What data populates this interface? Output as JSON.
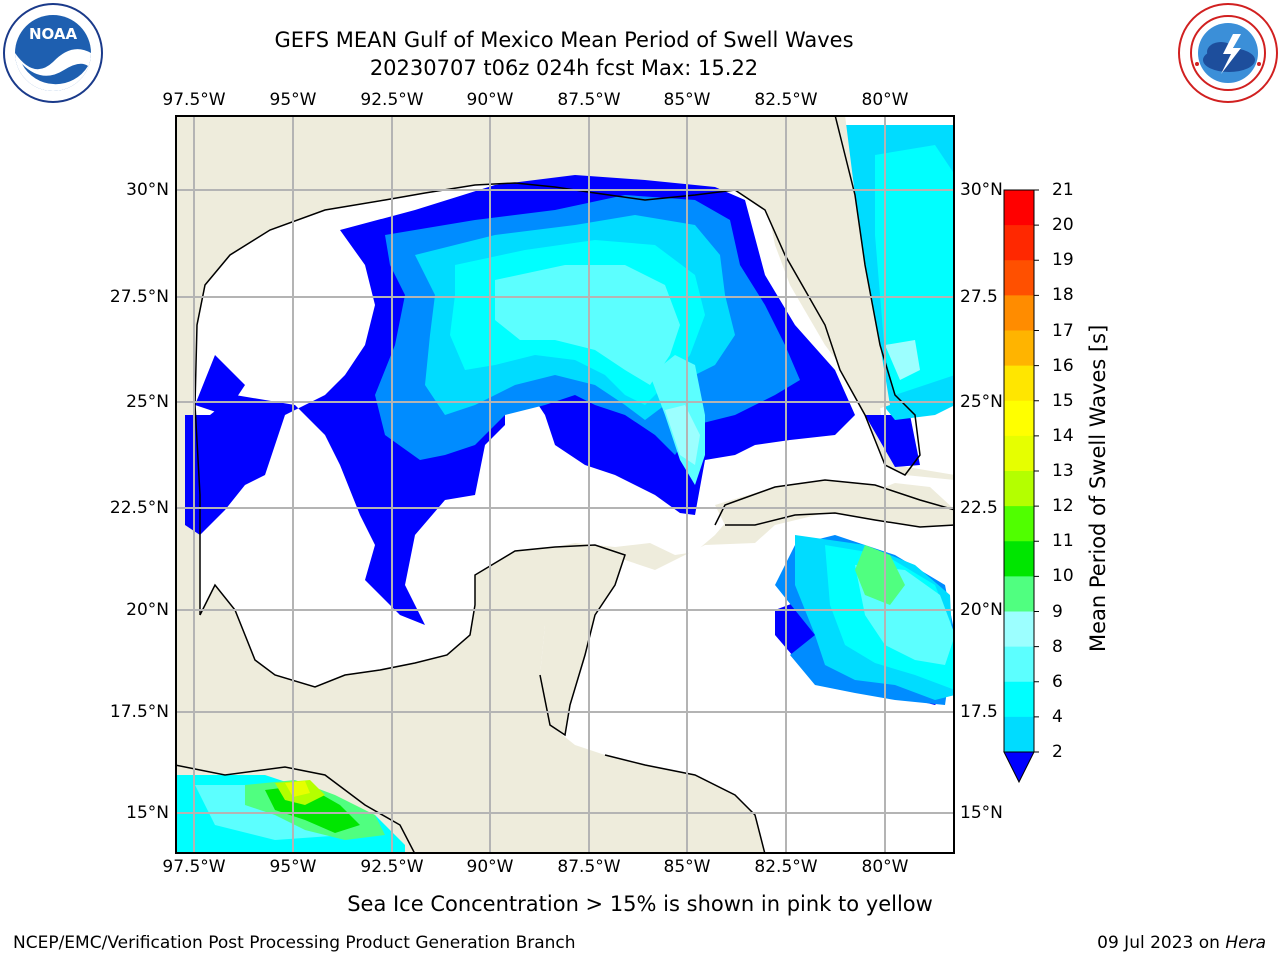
{
  "header": {
    "title_line1": "GEFS MEAN Gulf of Mexico Mean Period of Swell Waves",
    "title_line2": "20230707 t06z 024h fcst   Max: 15.22"
  },
  "logos": {
    "noaa": {
      "name": "noaa-logo",
      "text": "NOAA",
      "ring_text": "NATIONAL OCEANIC AND ATMOSPHERIC ADMINISTRATION · U.S. DEPARTMENT OF COMMERCE"
    },
    "nws": {
      "name": "nws-logo",
      "ring_text": "NATIONAL WEATHER SERVICE"
    }
  },
  "map": {
    "lon_labels": [
      "97.5°W",
      "95°W",
      "92.5°W",
      "90°W",
      "87.5°W",
      "85°W",
      "82.5°W",
      "80°W"
    ],
    "lat_labels_left": [
      "30°N",
      "27.5°N",
      "25°N",
      "22.5°N",
      "20°N",
      "17.5°N",
      "15°N"
    ],
    "lat_labels_right": [
      "30°N",
      "27.5",
      "25°N",
      "22.5",
      "20°N",
      "17.5",
      "15°N"
    ],
    "colors": {
      "land": "#eeecdc",
      "ocean": "#ffffff",
      "grid": "#b4b4b4",
      "coast": "#000000"
    }
  },
  "colorbar": {
    "label": "Mean Period of Swell Waves [s]",
    "ticks": [
      "2",
      "4",
      "6",
      "8",
      "9",
      "10",
      "11",
      "12",
      "13",
      "14",
      "15",
      "16",
      "17",
      "18",
      "19",
      "20",
      "21"
    ],
    "colors": [
      "#0028ff",
      "#008cff",
      "#00dcff",
      "#00ffff",
      "#5cffff",
      "#9cffff",
      "#50ff80",
      "#00e600",
      "#50ff00",
      "#b4ff00",
      "#e6ff00",
      "#ffff00",
      "#ffe600",
      "#ffb400",
      "#ff8c00",
      "#ff5000",
      "#ff2800",
      "#ff0000"
    ],
    "under_color": "#0000ff"
  },
  "footer": {
    "note": "Sea Ice Concentration > 15% is shown in pink to yellow",
    "left": "NCEP/EMC/Verification Post Processing Product Generation Branch",
    "right_date": "09 Jul 2023 on ",
    "right_host": "Hera"
  }
}
